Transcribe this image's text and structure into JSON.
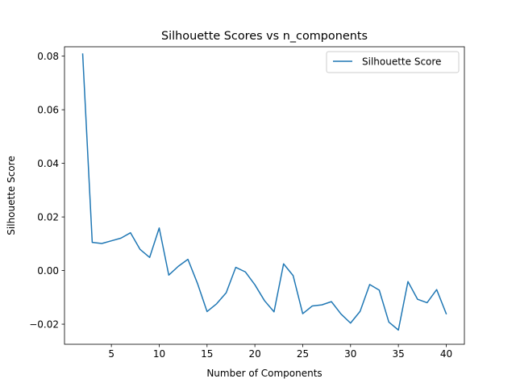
{
  "chart_data": {
    "type": "line",
    "title": "Silhouette Scores vs n_components",
    "xlabel": "Number of Components",
    "ylabel": "Silhouette Score",
    "xlim": [
      0.1,
      41.9
    ],
    "ylim": [
      -0.0275,
      0.0835
    ],
    "xticks": [
      5,
      10,
      15,
      20,
      25,
      30,
      35,
      40
    ],
    "xtick_labels": [
      "5",
      "10",
      "15",
      "20",
      "25",
      "30",
      "35",
      "40"
    ],
    "yticks": [
      -0.02,
      0.0,
      0.02,
      0.04,
      0.06,
      0.08
    ],
    "ytick_labels": [
      "−0.02",
      "0.00",
      "0.02",
      "0.04",
      "0.06",
      "0.08"
    ],
    "grid": false,
    "legend_position": "top-right",
    "series": [
      {
        "name": "Silhouette Score",
        "color": "#1f77b4",
        "x": [
          2,
          3,
          4,
          5,
          6,
          7,
          8,
          9,
          10,
          11,
          12,
          13,
          14,
          15,
          16,
          17,
          18,
          19,
          20,
          21,
          22,
          23,
          24,
          25,
          26,
          27,
          28,
          29,
          30,
          31,
          32,
          33,
          34,
          35,
          36,
          37,
          38,
          39,
          40
        ],
        "values": [
          0.0808,
          0.0105,
          0.0101,
          0.0111,
          0.0121,
          0.0141,
          0.0079,
          0.0049,
          0.0159,
          -0.0017,
          0.0016,
          0.0042,
          -0.0048,
          -0.0153,
          -0.0124,
          -0.0083,
          0.0012,
          -0.0005,
          -0.0053,
          -0.0112,
          -0.0154,
          0.0025,
          -0.0019,
          -0.0161,
          -0.0132,
          -0.0128,
          -0.0116,
          -0.0162,
          -0.0196,
          -0.0152,
          -0.0052,
          -0.0073,
          -0.0192,
          -0.0222,
          -0.0041,
          -0.0107,
          -0.012,
          -0.0071,
          -0.0161
        ]
      }
    ]
  }
}
